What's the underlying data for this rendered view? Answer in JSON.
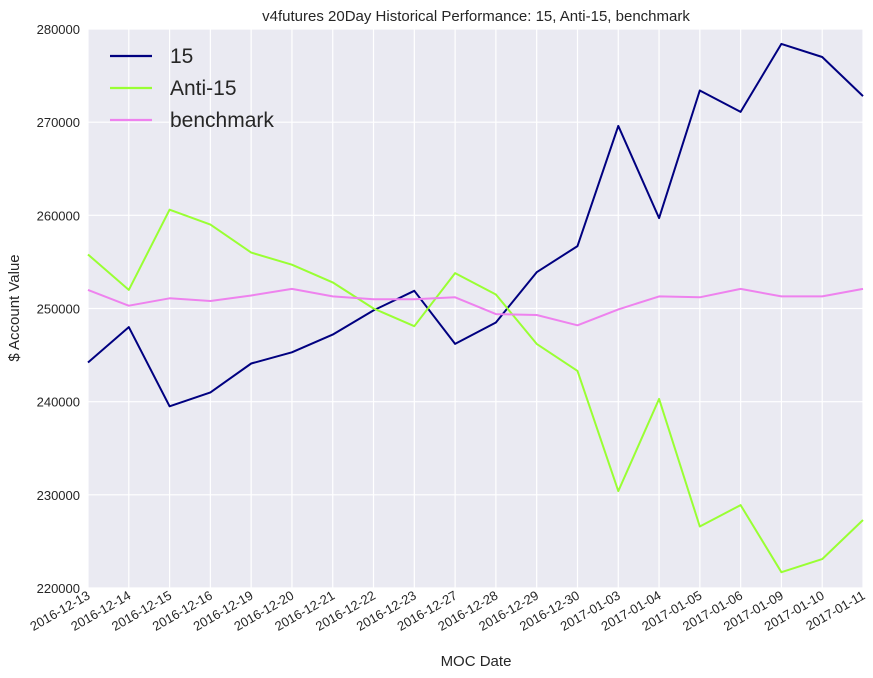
{
  "chart_data": {
    "type": "line",
    "title": "v4futures 20Day Historical Performance: 15, Anti-15, benchmark",
    "xlabel": "MOC Date",
    "ylabel": "$ Account Value",
    "ylim": [
      220000,
      280000
    ],
    "yticks": [
      "220000",
      "230000",
      "240000",
      "250000",
      "260000",
      "270000",
      "280000"
    ],
    "x": [
      "2016-12-13",
      "2016-12-14",
      "2016-12-15",
      "2016-12-16",
      "2016-12-19",
      "2016-12-20",
      "2016-12-21",
      "2016-12-22",
      "2016-12-23",
      "2016-12-27",
      "2016-12-28",
      "2016-12-29",
      "2016-12-30",
      "2017-01-03",
      "2017-01-04",
      "2017-01-05",
      "2017-01-06",
      "2017-01-09",
      "2017-01-10",
      "2017-01-11"
    ],
    "grid": true,
    "legend_position": "top-left",
    "background_color": "#EAEAF2",
    "series": [
      {
        "name": "15",
        "color": "#000080",
        "values": [
          244200,
          248000,
          239500,
          241000,
          244100,
          245300,
          247200,
          249800,
          251900,
          246200,
          248500,
          253900,
          256700,
          269600,
          259700,
          273400,
          271100,
          278400,
          277000,
          272800
        ]
      },
      {
        "name": "Anti-15",
        "color": "#99FF33",
        "values": [
          255800,
          252000,
          260600,
          259000,
          256000,
          254700,
          252800,
          250000,
          248100,
          253800,
          251500,
          246200,
          243300,
          230400,
          240300,
          226600,
          228900,
          221700,
          223100,
          227300
        ]
      },
      {
        "name": "benchmark",
        "color": "#EE82EE",
        "values": [
          252000,
          250300,
          251100,
          250800,
          251400,
          252100,
          251300,
          251000,
          251000,
          251200,
          249400,
          249300,
          248200,
          249900,
          251300,
          251200,
          252100,
          251300,
          251300,
          252100
        ]
      }
    ]
  }
}
